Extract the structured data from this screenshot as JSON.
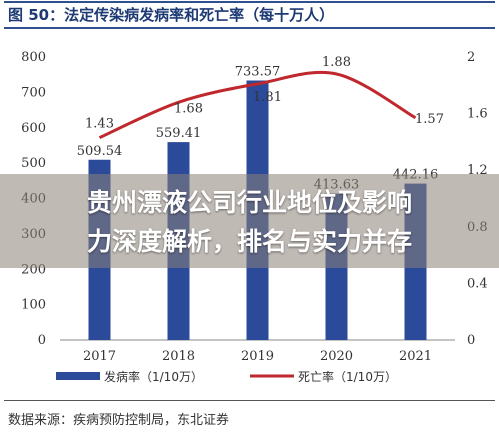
{
  "header": {
    "title": "图 50：法定传染病发病率和死亡率（每十万人）",
    "source": "数据来源：疾病预防控制局，东北证券"
  },
  "overlay": {
    "line1": "贵州漂液公司行业地位及影响",
    "line2": "力深度解析，排名与实力并存"
  },
  "colors": {
    "bar": "#2b4a9a",
    "line": "#c0282d",
    "title": "#1e3a75"
  },
  "chart_data": {
    "type": "bar",
    "categories": [
      "2017",
      "2018",
      "2019",
      "2020",
      "2021"
    ],
    "series": [
      {
        "name": "发病率（1/10万）",
        "type": "bar",
        "axis": "left",
        "values": [
          509.54,
          559.41,
          733.57,
          413.63,
          442.16
        ],
        "labels": [
          "509.54",
          "559.41",
          "733.57",
          "413.63",
          "442.16"
        ]
      },
      {
        "name": "死亡率（1/10万）",
        "type": "line",
        "axis": "right",
        "values": [
          1.43,
          1.68,
          1.81,
          1.88,
          1.57
        ],
        "labels": [
          "1.43",
          "1.68",
          "1.81",
          "1.88",
          "1.57"
        ]
      }
    ],
    "y_left": {
      "min": 0,
      "max": 800,
      "ticks": [
        "0",
        "100",
        "200",
        "300",
        "400",
        "500",
        "600",
        "700",
        "800"
      ]
    },
    "y_right": {
      "min": 0,
      "max": 2,
      "ticks": [
        "0",
        "0.4",
        "0.8",
        "1.2",
        "1.6",
        "2"
      ]
    },
    "legend_position": "bottom",
    "grid": false
  }
}
